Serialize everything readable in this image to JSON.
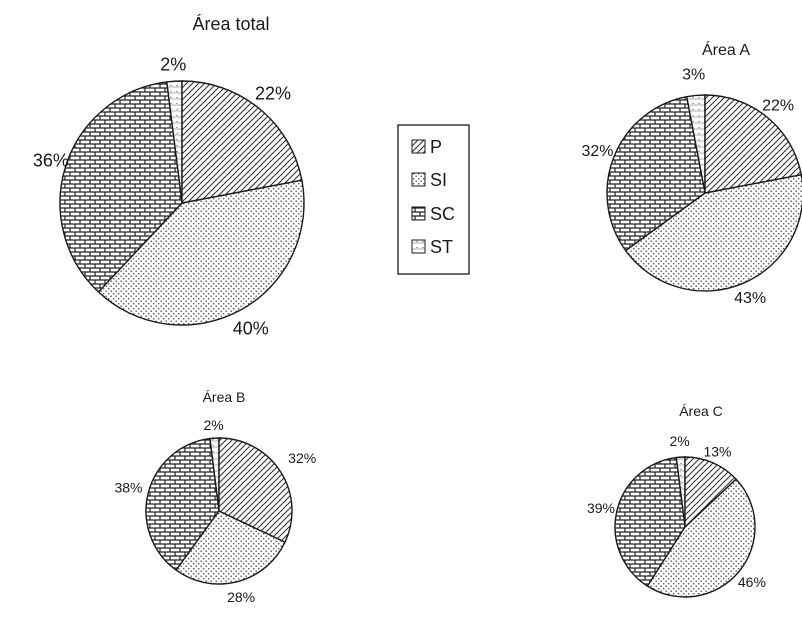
{
  "chart_data": [
    {
      "type": "pie",
      "title": "Área total",
      "categories": [
        "P",
        "SI",
        "SC",
        "ST"
      ],
      "values": [
        22,
        40,
        36,
        2
      ],
      "labels": [
        "22%",
        "40%",
        "36%",
        "2%"
      ]
    },
    {
      "type": "pie",
      "title": "Área A",
      "categories": [
        "P",
        "SI",
        "SC",
        "ST"
      ],
      "values": [
        22,
        43,
        32,
        3
      ],
      "labels": [
        "22%",
        "43%",
        "32%",
        "3%"
      ]
    },
    {
      "type": "pie",
      "title": "Área B",
      "categories": [
        "P",
        "SI",
        "SC",
        "ST"
      ],
      "values": [
        32,
        28,
        38,
        2
      ],
      "labels": [
        "32%",
        "28%",
        "38%",
        "2%"
      ]
    },
    {
      "type": "pie",
      "title": "Área C",
      "categories": [
        "P",
        "SI",
        "SC",
        "ST"
      ],
      "values": [
        13,
        46,
        39,
        2
      ],
      "labels": [
        "13%",
        "46%",
        "39%",
        "2%"
      ]
    }
  ],
  "legend": {
    "placement": "center",
    "items": [
      "P",
      "SI",
      "SC",
      "ST"
    ]
  },
  "colors": {
    "outline": "#1a1a1a",
    "background": "#ffffff"
  }
}
